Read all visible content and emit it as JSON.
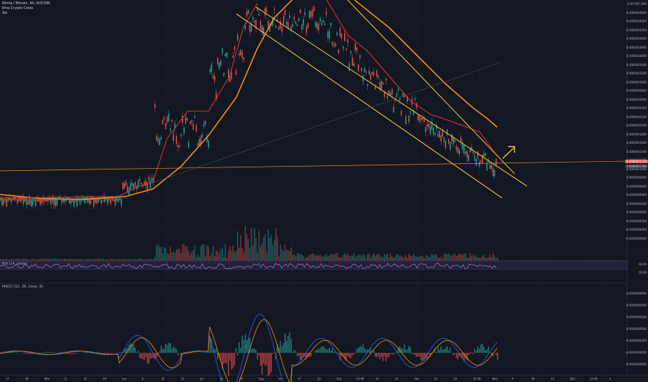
{
  "header": {
    "symbol": "Nimiq / Bitcoin, 4h, KUCOIN",
    "indicator_1": "Ema Crypto Cross",
    "indicator_2": "Vol"
  },
  "axes": {
    "price_ticks": [
      "0.00 NTC·000",
      "0.0000004600",
      "0.0000004400",
      "0.0000004200",
      "0.0000004000",
      "0.0000003800",
      "0.0000003600",
      "0.0000003400",
      "0.0000003200",
      "0.0000003000",
      "0.0000002800",
      "0.0000002600",
      "0.0000002400",
      "0.0000002200",
      "0.0000002000",
      "0.0000001800",
      "0.0000001600",
      "0.0000001400",
      "0.0000001200",
      "0.0000001000",
      "0.0000000800",
      "0.0000000600",
      "0.0000000400",
      "0.0000000200",
      "0.0000000000",
      "-0.0000000200",
      "-0.0000000400",
      "-0.0000000600"
    ],
    "time_ticks": [
      "17",
      "20",
      "Mar",
      "11",
      "15",
      "29",
      "Jun",
      "8",
      "15",
      "22",
      "Jul",
      "13",
      "20",
      "Aug",
      "10",
      "17",
      "24",
      "Sep",
      "14:00",
      "14",
      "21",
      "Oct",
      "12",
      "19",
      "11:00",
      "Nov",
      "9",
      "16",
      "23",
      "Dec",
      "12:00",
      "4"
    ],
    "current_price_badge": "0.0000001740",
    "current_price_badge_2": "0.0000001700",
    "rsi_label": "RSI (14, close)",
    "rsi_ticks": [
      "40.00",
      "20.00"
    ],
    "macd_label": "MACD (12, 26, close, 9)",
    "macd_ticks": [
      "0.0000000600",
      "0.0000000400",
      "0.0000000200",
      "0.0000000000",
      "-0.0000000200",
      "-0.0000000400",
      "-0.0000000600"
    ]
  },
  "colors": {
    "background": "#131722",
    "grid": "#1e222d",
    "up": "#26a69a",
    "down": "#ef5350",
    "ema_orange": "#f7931a",
    "ema_red": "#e53935",
    "trendline": "#f5c242",
    "rsi": "#7e57c2",
    "macd": "#2962ff",
    "signal": "#ff9800",
    "arrow": "#f5c242"
  }
}
